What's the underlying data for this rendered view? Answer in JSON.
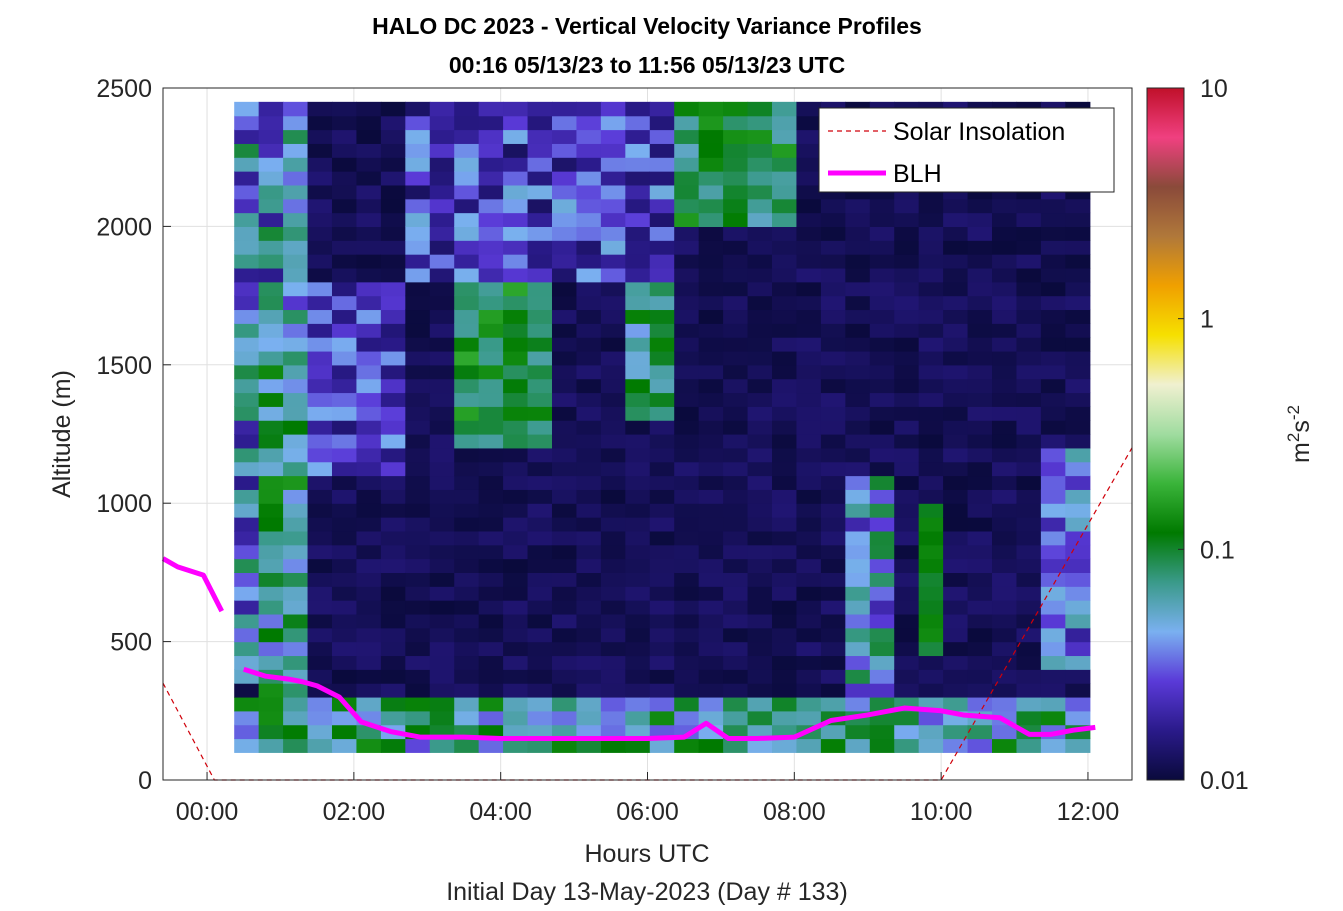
{
  "chart_data": {
    "type": "heatmap",
    "title": "HALO DC 2023 - Vertical Velocity Variance Profiles",
    "subtitle": "00:16 05/13/23 to 11:56 05/13/23  UTC",
    "xlabel": "Hours UTC",
    "ylabel": "Altitude (m)",
    "footer": "Initial Day 13-May-2023 (Day # 133)",
    "colorbar_label": "m²s⁻²",
    "colorbar_scale": "log",
    "colorbar_range": [
      0.01,
      10
    ],
    "colorbar_ticks": [
      "0.01",
      "0.1",
      "1",
      "10"
    ],
    "colorbar_colors": [
      "#0a0a3c",
      "#2a1a8a",
      "#5a3ad8",
      "#7ab0f0",
      "#3a9a8a",
      "#007a00",
      "#3ab43a",
      "#a0dca0",
      "#f0f0d0",
      "#f6e000",
      "#f0a000",
      "#b0783a",
      "#8a4a3a",
      "#f04080",
      "#c0102a"
    ],
    "xlim": [
      -0.6,
      12.6
    ],
    "ylim": [
      0,
      2500
    ],
    "x_ticks": [
      0,
      2,
      4,
      6,
      8,
      10,
      12
    ],
    "x_tick_labels": [
      "00:00",
      "02:00",
      "04:00",
      "06:00",
      "08:00",
      "10:00",
      "12:00"
    ],
    "y_ticks": [
      0,
      500,
      1000,
      1500,
      2000,
      2500
    ],
    "y_tick_labels": [
      "0",
      "500",
      "1000",
      "1500",
      "2000",
      "2500"
    ],
    "grid": true,
    "legend_position": "top-right",
    "heatmap": {
      "x_start": 0.37,
      "x_end": 12.0,
      "x_step": 0.333,
      "y_start": 100,
      "y_end": 2450,
      "y_step": 50,
      "description_of_levels": "log10 variance per cell; most values near 0.01 (dark navy), enhanced variance (purple to green, 0.02-0.15) in the boundary layer below 300 m, columns near 00:30-01:00, 02:00-06:30 aloft (1000-2500 m), and 09:00-12:00 columns"
    },
    "series": [
      {
        "name": "Solar Insolation",
        "color": "#d0000a",
        "style": "dashed",
        "x": [
          -0.6,
          0.1,
          10.0,
          12.6
        ],
        "y": [
          350,
          0,
          0,
          1200
        ]
      },
      {
        "name": "BLH",
        "color": "#ff00ff",
        "style": "solid",
        "segments": [
          {
            "x": [
              -0.6,
              -0.4,
              -0.05,
              0.2
            ],
            "y": [
              800,
              770,
              740,
              610
            ]
          },
          {
            "x": [
              0.5,
              0.8,
              1.1,
              1.3,
              1.5,
              1.8,
              2.1,
              2.5,
              2.9,
              3.5,
              4.0,
              4.5,
              5.0,
              5.5,
              6.0,
              6.5,
              6.8,
              7.1,
              7.5,
              8.0,
              8.5,
              9.0,
              9.5,
              10.0,
              10.3,
              10.8,
              11.2,
              11.5,
              11.8,
              12.1
            ],
            "y": [
              400,
              375,
              365,
              355,
              340,
              300,
              210,
              175,
              155,
              155,
              150,
              150,
              150,
              150,
              150,
              155,
              205,
              150,
              150,
              155,
              215,
              235,
              260,
              250,
              235,
              225,
              165,
              165,
              180,
              190
            ]
          }
        ]
      }
    ]
  }
}
